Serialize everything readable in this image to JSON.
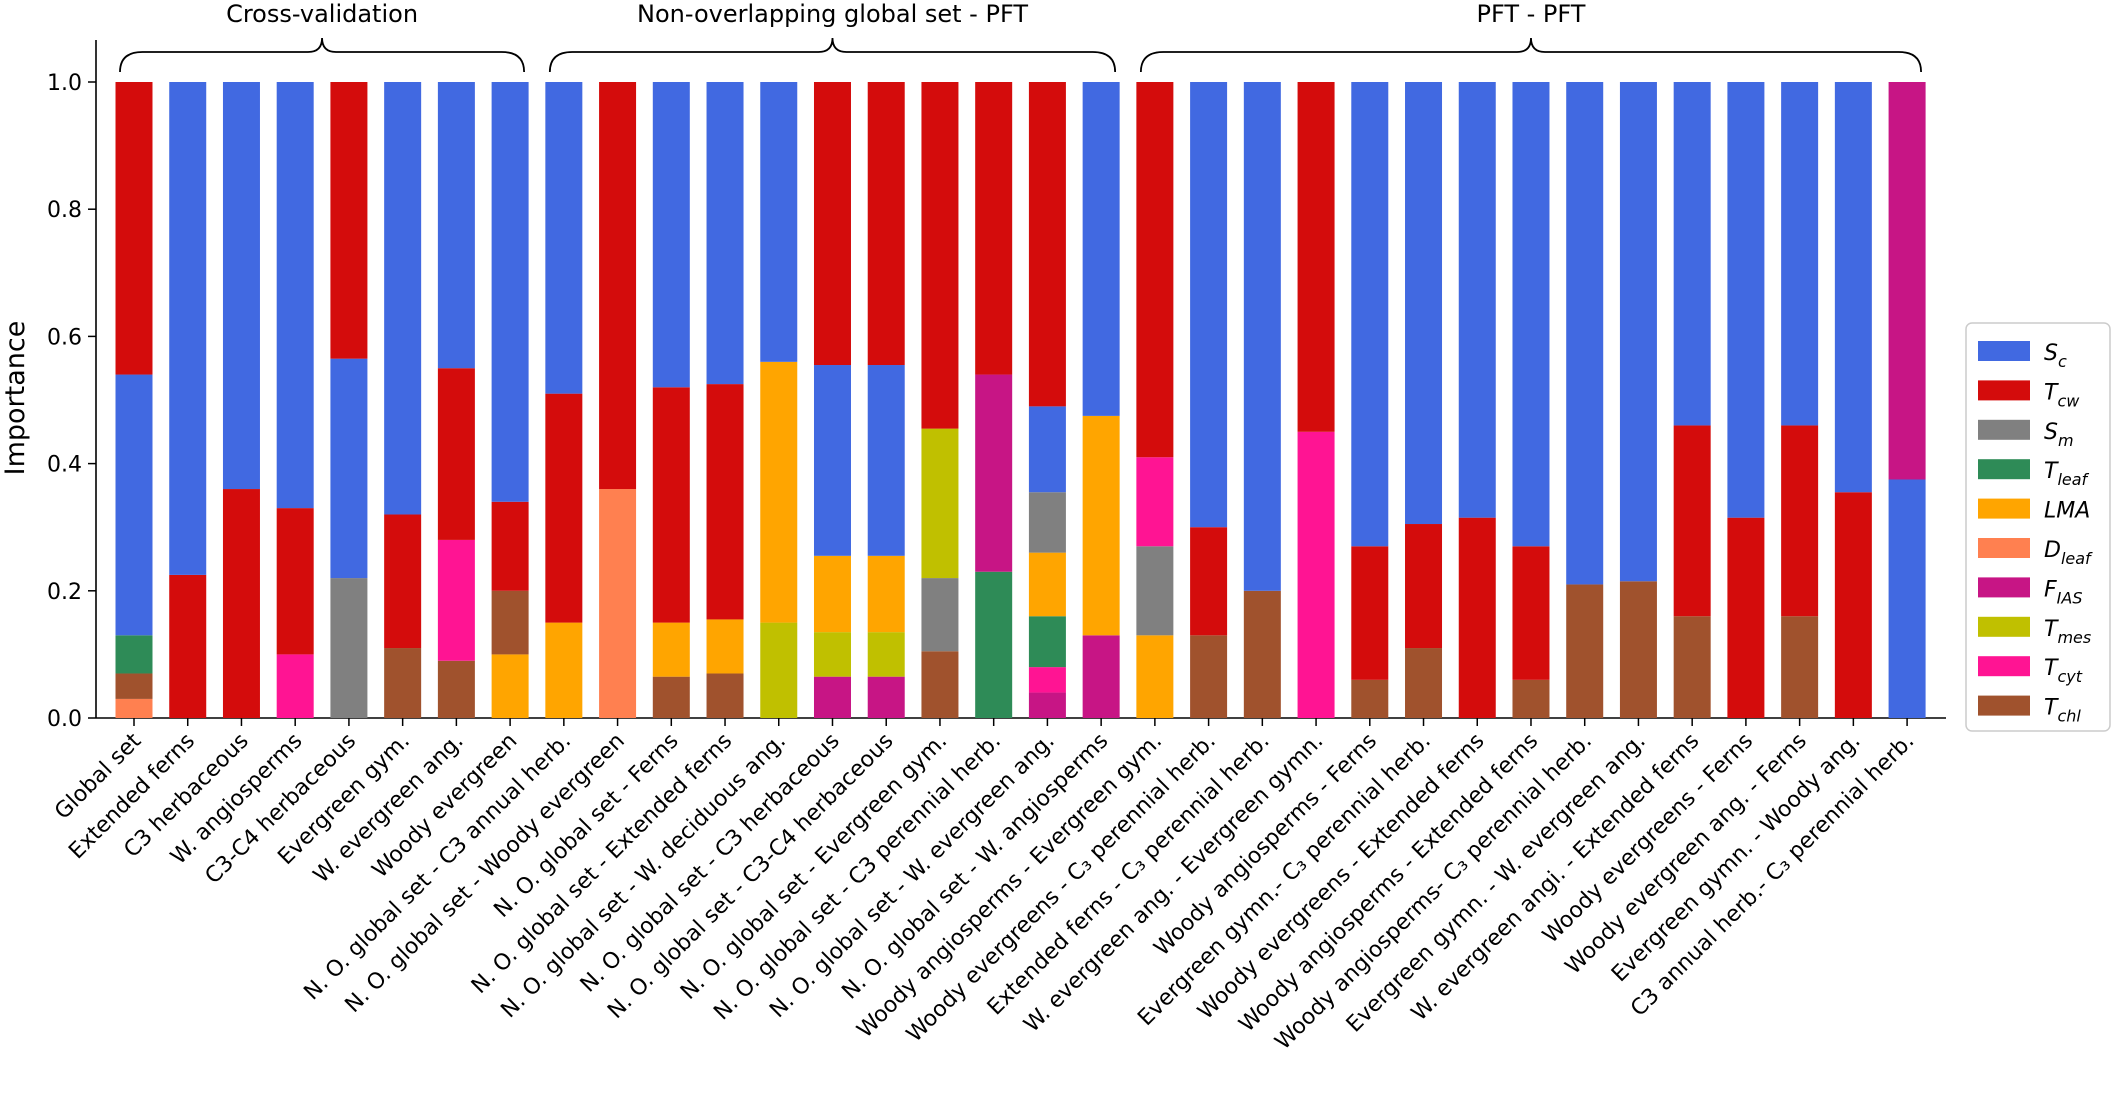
{
  "chart_data": {
    "type": "bar",
    "stacked": true,
    "ylabel": "Importance",
    "ylim": [
      0,
      1.0
    ],
    "yticks": [
      "0.0",
      "0.2",
      "0.4",
      "0.6",
      "0.8",
      "1.0"
    ],
    "legend_position": "right",
    "groups": [
      {
        "label": "Cross-validation",
        "start": 0,
        "end": 7
      },
      {
        "label": "Non-overlapping global set - PFT",
        "start": 8,
        "end": 18
      },
      {
        "label": "PFT - PFT",
        "start": 19,
        "end": 33
      }
    ],
    "series": [
      {
        "key": "Sc",
        "base": "S",
        "sub": "c",
        "color": "#4169e1"
      },
      {
        "key": "Tcw",
        "base": "T",
        "sub": "cw",
        "color": "#d40c0c"
      },
      {
        "key": "Sm",
        "base": "S",
        "sub": "m",
        "color": "#808080"
      },
      {
        "key": "Tleaf",
        "base": "T",
        "sub": "leaf",
        "color": "#2e8b57"
      },
      {
        "key": "LMA",
        "base": "LMA",
        "sub": "",
        "color": "#ffa500"
      },
      {
        "key": "Dleaf",
        "base": "D",
        "sub": "leaf",
        "color": "#ff8050"
      },
      {
        "key": "FIAS",
        "base": "F",
        "sub": "IAS",
        "color": "#c71585"
      },
      {
        "key": "Tmes",
        "base": "T",
        "sub": "mes",
        "color": "#c0c000"
      },
      {
        "key": "Tcyt",
        "base": "T",
        "sub": "cyt",
        "color": "#ff1493"
      },
      {
        "key": "Tchl",
        "base": "T",
        "sub": "chl",
        "color": "#a0522d"
      }
    ],
    "categories": [
      {
        "label": "Global set",
        "stack": [
          [
            "Dleaf",
            0.03
          ],
          [
            "Tchl",
            0.04
          ],
          [
            "Tleaf",
            0.06
          ],
          [
            "Sc",
            0.41
          ],
          [
            "Tcw",
            0.46
          ]
        ]
      },
      {
        "label": "Extended ferns",
        "stack": [
          [
            "Tcw",
            0.225
          ],
          [
            "Sc",
            0.775
          ]
        ]
      },
      {
        "label": "C3 herbaceous",
        "stack": [
          [
            "Tcw",
            0.36
          ],
          [
            "Sc",
            0.64
          ]
        ]
      },
      {
        "label": "W. angiosperms",
        "stack": [
          [
            "Tcyt",
            0.1
          ],
          [
            "Tcw",
            0.23
          ],
          [
            "Sc",
            0.67
          ]
        ]
      },
      {
        "label": "C3-C4 herbaceous",
        "stack": [
          [
            "Sm",
            0.22
          ],
          [
            "Sc",
            0.345
          ],
          [
            "Tcw",
            0.435
          ]
        ]
      },
      {
        "label": "Evergreen gym.",
        "stack": [
          [
            "Tchl",
            0.11
          ],
          [
            "Tcw",
            0.21
          ],
          [
            "Sc",
            0.68
          ]
        ]
      },
      {
        "label": "W. evergreen ang.",
        "stack": [
          [
            "Tchl",
            0.09
          ],
          [
            "Tcyt",
            0.19
          ],
          [
            "Tcw",
            0.27
          ],
          [
            "Sc",
            0.45
          ]
        ]
      },
      {
        "label": "Woody evergreen",
        "stack": [
          [
            "LMA",
            0.1
          ],
          [
            "Tchl",
            0.1
          ],
          [
            "Tcw",
            0.14
          ],
          [
            "Sc",
            0.66
          ]
        ]
      },
      {
        "label": "N. O. global set - C3 annual herb.",
        "stack": [
          [
            "LMA",
            0.15
          ],
          [
            "Tcw",
            0.36
          ],
          [
            "Sc",
            0.49
          ]
        ]
      },
      {
        "label": "N. O. global set - Woody evergreen",
        "stack": [
          [
            "Dleaf",
            0.36
          ],
          [
            "Tcw",
            0.64
          ]
        ]
      },
      {
        "label": "N. O. global set - Ferns",
        "stack": [
          [
            "Tchl",
            0.065
          ],
          [
            "LMA",
            0.085
          ],
          [
            "Tcw",
            0.37
          ],
          [
            "Sc",
            0.48
          ]
        ]
      },
      {
        "label": "N. O. global set - Extended ferns",
        "stack": [
          [
            "Tchl",
            0.07
          ],
          [
            "LMA",
            0.085
          ],
          [
            "Tcw",
            0.37
          ],
          [
            "Sc",
            0.475
          ]
        ]
      },
      {
        "label": "N. O. global set - W. deciduous ang.",
        "stack": [
          [
            "Tmes",
            0.15
          ],
          [
            "LMA",
            0.41
          ],
          [
            "Sc",
            0.44
          ]
        ]
      },
      {
        "label": "N. O. global set - C3 herbaceous",
        "stack": [
          [
            "FIAS",
            0.065
          ],
          [
            "Tmes",
            0.07
          ],
          [
            "LMA",
            0.12
          ],
          [
            "Sc",
            0.3
          ],
          [
            "Tcw",
            0.445
          ]
        ]
      },
      {
        "label": "N. O. global set - C3-C4 herbaceous",
        "stack": [
          [
            "FIAS",
            0.065
          ],
          [
            "Tmes",
            0.07
          ],
          [
            "LMA",
            0.12
          ],
          [
            "Sc",
            0.3
          ],
          [
            "Tcw",
            0.445
          ]
        ]
      },
      {
        "label": "N. O. global set - Evergreen gym.",
        "stack": [
          [
            "Tchl",
            0.105
          ],
          [
            "Sm",
            0.115
          ],
          [
            "Tmes",
            0.235
          ],
          [
            "Tcw",
            0.545
          ]
        ]
      },
      {
        "label": "N. O. global set - C3 perennial herb.",
        "stack": [
          [
            "Tleaf",
            0.23
          ],
          [
            "FIAS",
            0.31
          ],
          [
            "Tcw",
            0.46
          ]
        ]
      },
      {
        "label": "N. O. global set - W. evergreen ang.",
        "stack": [
          [
            "FIAS",
            0.04
          ],
          [
            "Tcyt",
            0.04
          ],
          [
            "Tleaf",
            0.08
          ],
          [
            "LMA",
            0.1
          ],
          [
            "Sm",
            0.095
          ],
          [
            "Sc",
            0.135
          ],
          [
            "Tcw",
            0.51
          ]
        ]
      },
      {
        "label": "N. O. global set - W. angiosperms",
        "stack": [
          [
            "FIAS",
            0.13
          ],
          [
            "LMA",
            0.345
          ],
          [
            "Sc",
            0.525
          ]
        ]
      },
      {
        "label": "Woody angiosperms - Evergreen gym.",
        "stack": [
          [
            "LMA",
            0.13
          ],
          [
            "Sm",
            0.14
          ],
          [
            "Tcyt",
            0.14
          ],
          [
            "Tcw",
            0.59
          ]
        ]
      },
      {
        "label": "Woody evergreens - C₃ perennial herb.",
        "stack": [
          [
            "Tchl",
            0.13
          ],
          [
            "Tcw",
            0.17
          ],
          [
            "Sc",
            0.7
          ]
        ]
      },
      {
        "label": "Extended ferns - C₃ perennial herb.",
        "stack": [
          [
            "Tchl",
            0.2
          ],
          [
            "Sc",
            0.8
          ]
        ]
      },
      {
        "label": "W. evergreen ang. - Evergreen gymn.",
        "stack": [
          [
            "Tcyt",
            0.45
          ],
          [
            "Tcw",
            0.55
          ]
        ]
      },
      {
        "label": "Woody angiosperms - Ferns",
        "stack": [
          [
            "Tchl",
            0.06
          ],
          [
            "Tcw",
            0.21
          ],
          [
            "Sc",
            0.73
          ]
        ]
      },
      {
        "label": "Evergreen gymn.- C₃ perennial herb.",
        "stack": [
          [
            "Tchl",
            0.11
          ],
          [
            "Tcw",
            0.195
          ],
          [
            "Sc",
            0.695
          ]
        ]
      },
      {
        "label": "Woody evergreens - Extended ferns",
        "stack": [
          [
            "Tcw",
            0.315
          ],
          [
            "Sc",
            0.685
          ]
        ]
      },
      {
        "label": "Woody angiosperms - Extended ferns",
        "stack": [
          [
            "Tchl",
            0.06
          ],
          [
            "Tcw",
            0.21
          ],
          [
            "Sc",
            0.73
          ]
        ]
      },
      {
        "label": "Woody angiosperms- C₃ perennial herb.",
        "stack": [
          [
            "Tchl",
            0.21
          ],
          [
            "Sc",
            0.79
          ]
        ]
      },
      {
        "label": "Evergreen gymn. - W. evergreen ang.",
        "stack": [
          [
            "Tchl",
            0.215
          ],
          [
            "Sc",
            0.785
          ]
        ]
      },
      {
        "label": "W. evergreen angi. - Extended ferns",
        "stack": [
          [
            "Tchl",
            0.16
          ],
          [
            "Tcw",
            0.3
          ],
          [
            "Sc",
            0.54
          ]
        ]
      },
      {
        "label": "Woody evergreens - Ferns",
        "stack": [
          [
            "Tcw",
            0.315
          ],
          [
            "Sc",
            0.685
          ]
        ]
      },
      {
        "label": "Woody evergreen ang. - Ferns",
        "stack": [
          [
            "Tchl",
            0.16
          ],
          [
            "Tcw",
            0.3
          ],
          [
            "Sc",
            0.54
          ]
        ]
      },
      {
        "label": "Evergreen gymn. - Woody ang.",
        "stack": [
          [
            "Tcw",
            0.355
          ],
          [
            "Sc",
            0.645
          ]
        ]
      },
      {
        "label": "C3 annual herb.- C₃ perennial herb.",
        "stack": [
          [
            "Sc",
            0.375
          ],
          [
            "FIAS",
            0.625
          ]
        ]
      }
    ]
  }
}
